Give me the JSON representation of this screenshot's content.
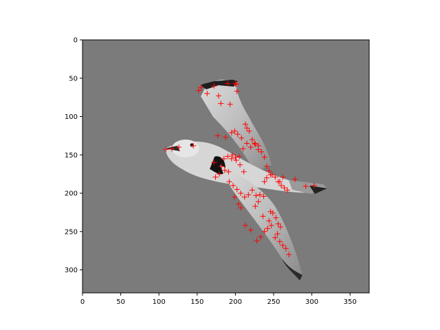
{
  "chart_data": {
    "type": "scatter",
    "title": "",
    "xlabel": "",
    "ylabel": "",
    "xlim": [
      0,
      375
    ],
    "ylim": [
      330,
      0
    ],
    "y_inverted": true,
    "grid": false,
    "background_image": "grayscale-photo-of-gull-in-flight",
    "xticks": [
      0,
      50,
      100,
      150,
      200,
      250,
      300,
      350
    ],
    "yticks": [
      0,
      50,
      100,
      150,
      200,
      250,
      300
    ],
    "marker": "plus",
    "marker_color": "#ff0000",
    "series": [
      {
        "x": [
          152,
          155,
          163,
          172,
          178,
          190,
          200,
          202,
          201,
          181,
          193,
          109,
          117,
          126,
          145,
          177,
          187,
          195,
          199,
          203,
          208,
          172,
          182,
          186,
          191,
          196,
          201,
          206,
          211,
          174,
          179,
          185,
          190,
          195,
          200,
          205,
          210,
          215,
          220,
          225,
          230,
          192,
          197,
          202,
          207,
          212,
          217,
          222,
          227,
          232,
          237,
          213,
          215,
          218,
          222,
          226,
          230,
          234,
          238,
          241,
          244,
          248,
          252,
          256,
          260,
          264,
          268,
          228,
          233,
          238,
          242,
          247,
          252,
          255,
          258,
          262,
          266,
          270,
          278,
          292,
          303,
          238,
          241,
          246,
          258,
          262,
          199,
          204,
          207,
          213,
          220,
          226,
          230,
          236,
          244,
          246,
          249,
          253,
          256,
          259
        ],
        "y": [
          66,
          62,
          70,
          60,
          73,
          57,
          57,
          67,
          58,
          83,
          84,
          143,
          142,
          140,
          138,
          125,
          127,
          121,
          119,
          123,
          128,
          160,
          165,
          170,
          172,
          150,
          157,
          163,
          172,
          179,
          175,
          155,
          152,
          155,
          153,
          152,
          142,
          135,
          140,
          135,
          138,
          185,
          190,
          195,
          200,
          205,
          202,
          196,
          203,
          202,
          204,
          110,
          115,
          119,
          130,
          136,
          143,
          146,
          153,
          165,
          171,
          176,
          179,
          185,
          190,
          193,
          196,
          262,
          257,
          250,
          246,
          242,
          258,
          253,
          263,
          268,
          272,
          280,
          182,
          191,
          190,
          185,
          180,
          176,
          185,
          179,
          205,
          214,
          219,
          242,
          248,
          217,
          211,
          230,
          236,
          224,
          226,
          232,
          240,
          244
        ]
      }
    ]
  }
}
